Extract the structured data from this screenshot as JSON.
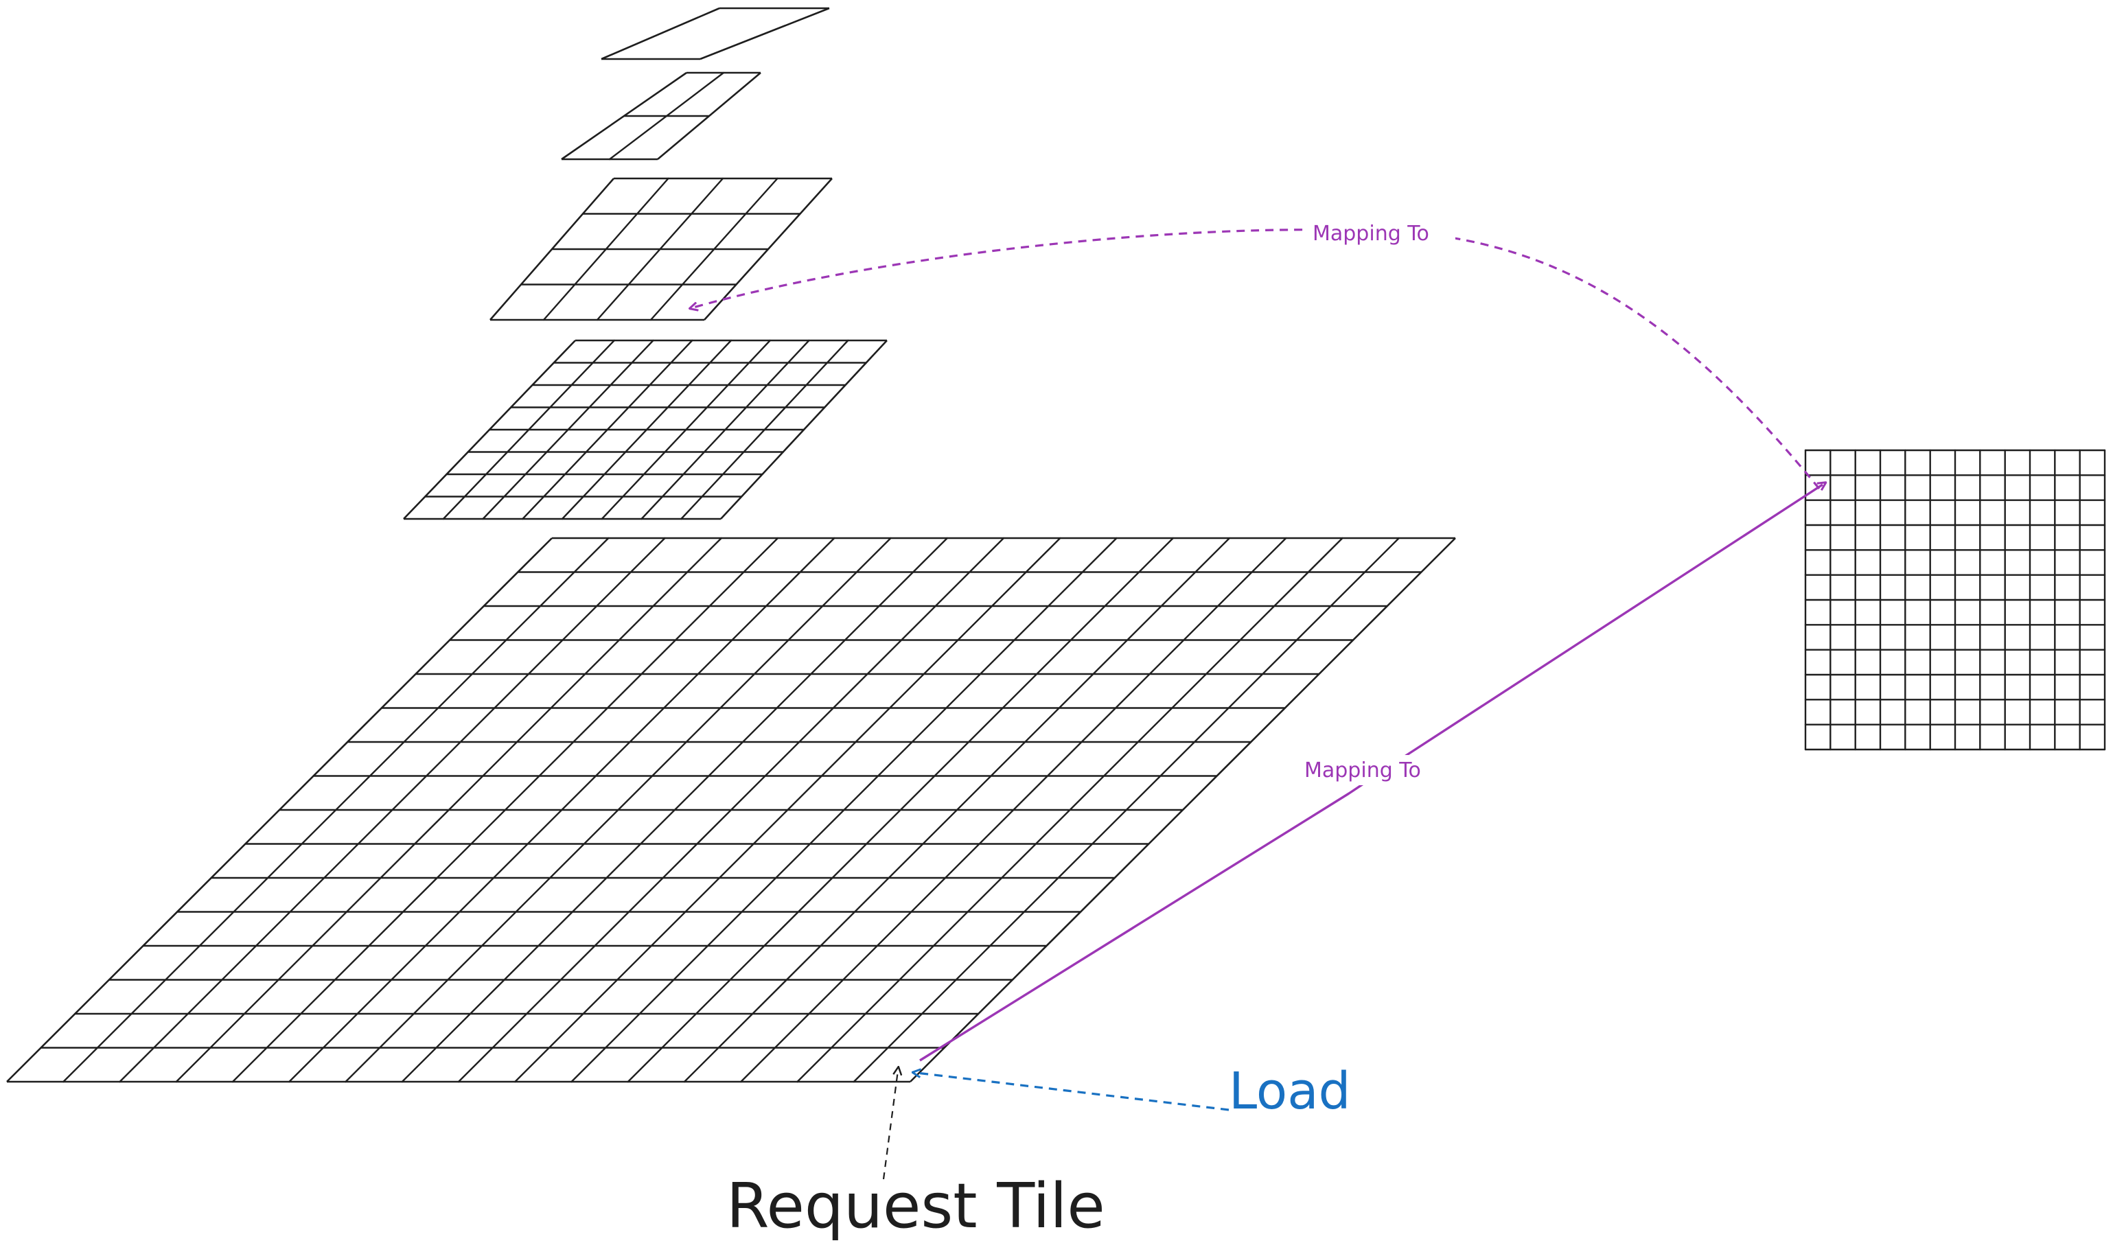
{
  "diagram": {
    "pyramid_levels": [
      {
        "name": "level-1x1",
        "divisions": 1
      },
      {
        "name": "level-2x2",
        "divisions": 2
      },
      {
        "name": "level-4x4",
        "divisions": 4
      },
      {
        "name": "level-8x8",
        "divisions": 8
      },
      {
        "name": "level-16x16",
        "divisions": 16
      }
    ],
    "target_grid": {
      "name": "target-grid",
      "divisions": 12
    },
    "labels": {
      "mapping_top": "Mapping To",
      "mapping_bottom": "Mapping To",
      "load": "Load",
      "request_tile": "Request Tile"
    },
    "colors": {
      "grid": "#1e1e1e",
      "mapping": "#9c36b5",
      "load": "#1971c2",
      "request": "#1e1e1e"
    }
  }
}
